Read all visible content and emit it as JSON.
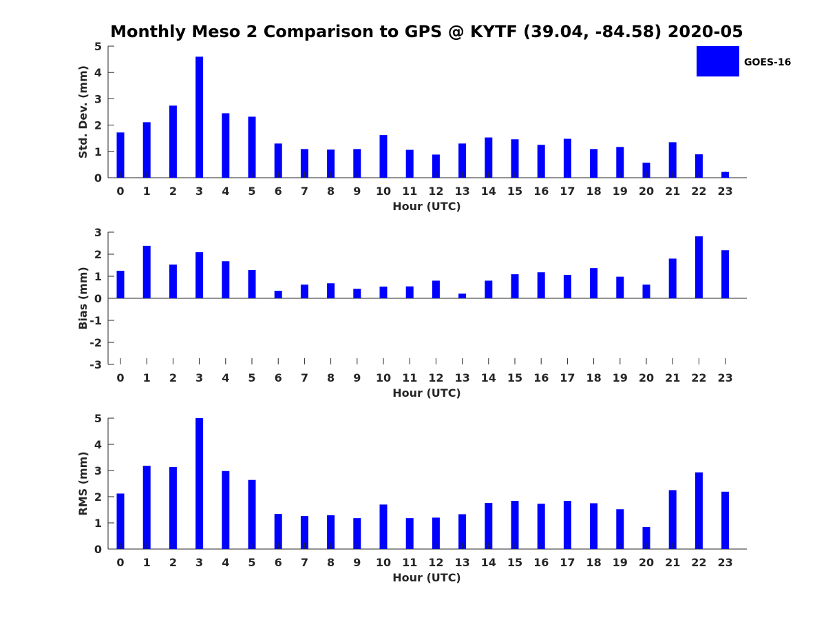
{
  "chart_data": {
    "title": "Monthly Meso 2 Comparison to GPS @ KYTF (39.04, -84.58) 2020-05",
    "legend": {
      "label": "GOES-16",
      "placement": "top-right",
      "color": "#0000ff"
    },
    "bar_color": "#0000ff",
    "panels": [
      {
        "type": "bar",
        "ylabel": "Std. Dev. (mm)",
        "xlabel": "Hour (UTC)",
        "ylim": [
          0,
          5
        ],
        "yticks": [
          0,
          1,
          2,
          3,
          4,
          5
        ],
        "categories": [
          "0",
          "1",
          "2",
          "3",
          "4",
          "5",
          "6",
          "7",
          "8",
          "9",
          "10",
          "11",
          "12",
          "13",
          "14",
          "15",
          "16",
          "17",
          "18",
          "19",
          "20",
          "21",
          "22",
          "23"
        ],
        "values": [
          1.72,
          2.11,
          2.74,
          4.6,
          2.45,
          2.32,
          1.3,
          1.09,
          1.07,
          1.09,
          1.62,
          1.06,
          0.88,
          1.3,
          1.53,
          1.46,
          1.25,
          1.48,
          1.09,
          1.17,
          0.57,
          1.35,
          0.89,
          0.22
        ]
      },
      {
        "type": "bar",
        "ylabel": "Bias (mm)",
        "xlabel": "Hour (UTC)",
        "ylim": [
          -3,
          3
        ],
        "yticks": [
          -3,
          -2,
          -1,
          0,
          1,
          2,
          3
        ],
        "categories": [
          "0",
          "1",
          "2",
          "3",
          "4",
          "5",
          "6",
          "7",
          "8",
          "9",
          "10",
          "11",
          "12",
          "13",
          "14",
          "15",
          "16",
          "17",
          "18",
          "19",
          "20",
          "21",
          "22",
          "23"
        ],
        "values": [
          1.25,
          2.38,
          1.53,
          2.09,
          1.68,
          1.28,
          0.34,
          0.62,
          0.68,
          0.43,
          0.53,
          0.54,
          0.8,
          0.21,
          0.8,
          1.09,
          1.18,
          1.06,
          1.37,
          0.98,
          0.62,
          1.8,
          2.81,
          2.18
        ]
      },
      {
        "type": "bar",
        "ylabel": "RMS (mm)",
        "xlabel": "Hour (UTC)",
        "ylim": [
          0,
          5
        ],
        "yticks": [
          0,
          1,
          2,
          3,
          4,
          5
        ],
        "categories": [
          "0",
          "1",
          "2",
          "3",
          "4",
          "5",
          "6",
          "7",
          "8",
          "9",
          "10",
          "11",
          "12",
          "13",
          "14",
          "15",
          "16",
          "17",
          "18",
          "19",
          "20",
          "21",
          "22",
          "23"
        ],
        "values": [
          2.12,
          3.18,
          3.13,
          5.0,
          2.98,
          2.64,
          1.34,
          1.26,
          1.29,
          1.18,
          1.7,
          1.18,
          1.2,
          1.33,
          1.76,
          1.84,
          1.73,
          1.84,
          1.75,
          1.52,
          0.84,
          2.25,
          2.93,
          2.19
        ]
      }
    ]
  }
}
